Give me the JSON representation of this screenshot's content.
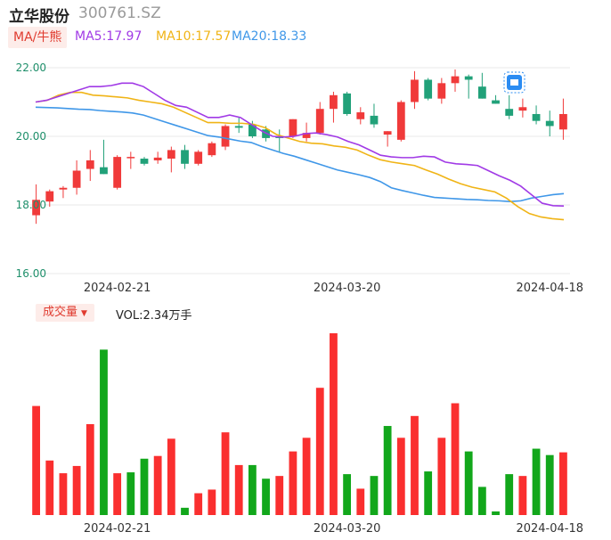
{
  "stock": {
    "name": "立华股份",
    "code": "300761.SZ"
  },
  "ma_tag": "MA/牛熊",
  "ma5": "MA5:17.97",
  "ma10": "MA10:17.57",
  "ma20": "MA20:18.33",
  "volume_panel": {
    "tag": "成交量",
    "value": "VOL:2.34万手"
  },
  "colors": {
    "up": "#f03a3a",
    "down": "#21a179",
    "vol_up": "#fa2f2f",
    "vol_down": "#12a71b",
    "ma5": "#a13ae6",
    "ma10": "#f0b416",
    "ma20": "#3f97e8",
    "axis_label": "#e03b2f"
  },
  "chart_data": [
    {
      "type": "candlestick",
      "y_ticks": [
        "22.00",
        "20.00",
        "18.00",
        "16.00"
      ],
      "ylim": [
        16.0,
        22.0
      ],
      "x_tick_labels": [
        "2024-02-21",
        "2024-03-20",
        "2024-04-18"
      ],
      "candles": [
        {
          "o": 17.7,
          "h": 18.6,
          "l": 17.45,
          "c": 18.15
        },
        {
          "o": 18.1,
          "h": 18.45,
          "l": 17.95,
          "c": 18.4
        },
        {
          "o": 18.45,
          "h": 18.55,
          "l": 18.2,
          "c": 18.5
        },
        {
          "o": 18.5,
          "h": 19.3,
          "l": 18.3,
          "c": 19.0
        },
        {
          "o": 19.05,
          "h": 19.6,
          "l": 18.7,
          "c": 19.3
        },
        {
          "o": 19.1,
          "h": 19.9,
          "l": 18.9,
          "c": 18.9
        },
        {
          "o": 18.5,
          "h": 19.45,
          "l": 18.45,
          "c": 19.4
        },
        {
          "o": 19.4,
          "h": 19.55,
          "l": 19.05,
          "c": 19.4
        },
        {
          "o": 19.35,
          "h": 19.4,
          "l": 19.15,
          "c": 19.2
        },
        {
          "o": 19.3,
          "h": 19.55,
          "l": 19.2,
          "c": 19.38
        },
        {
          "o": 19.35,
          "h": 19.7,
          "l": 18.95,
          "c": 19.6
        },
        {
          "o": 19.6,
          "h": 19.75,
          "l": 19.05,
          "c": 19.2
        },
        {
          "o": 19.2,
          "h": 19.6,
          "l": 19.15,
          "c": 19.55
        },
        {
          "o": 19.45,
          "h": 19.85,
          "l": 19.4,
          "c": 19.8
        },
        {
          "o": 19.7,
          "h": 20.35,
          "l": 19.6,
          "c": 20.3
        },
        {
          "o": 20.3,
          "h": 20.55,
          "l": 20.1,
          "c": 20.25
        },
        {
          "o": 20.35,
          "h": 20.45,
          "l": 19.95,
          "c": 20.0
        },
        {
          "o": 20.2,
          "h": 20.3,
          "l": 19.85,
          "c": 19.95
        },
        {
          "o": 20.0,
          "h": 20.2,
          "l": 19.55,
          "c": 19.95
        },
        {
          "o": 20.0,
          "h": 20.5,
          "l": 19.95,
          "c": 20.5
        },
        {
          "o": 19.95,
          "h": 20.4,
          "l": 19.85,
          "c": 20.1
        },
        {
          "o": 20.1,
          "h": 21.0,
          "l": 20.05,
          "c": 20.8
        },
        {
          "o": 20.8,
          "h": 21.3,
          "l": 20.4,
          "c": 21.2
        },
        {
          "o": 21.25,
          "h": 21.3,
          "l": 20.6,
          "c": 20.65
        },
        {
          "o": 20.5,
          "h": 20.85,
          "l": 20.35,
          "c": 20.7
        },
        {
          "o": 20.6,
          "h": 20.95,
          "l": 20.25,
          "c": 20.35
        },
        {
          "o": 20.05,
          "h": 20.15,
          "l": 19.7,
          "c": 20.15
        },
        {
          "o": 19.9,
          "h": 21.05,
          "l": 19.85,
          "c": 21.0
        },
        {
          "o": 21.0,
          "h": 21.9,
          "l": 20.8,
          "c": 21.65
        },
        {
          "o": 21.65,
          "h": 21.7,
          "l": 21.05,
          "c": 21.1
        },
        {
          "o": 21.1,
          "h": 21.7,
          "l": 20.95,
          "c": 21.55
        },
        {
          "o": 21.55,
          "h": 21.95,
          "l": 21.3,
          "c": 21.75
        },
        {
          "o": 21.75,
          "h": 21.8,
          "l": 21.1,
          "c": 21.65
        },
        {
          "o": 21.45,
          "h": 21.85,
          "l": 21.1,
          "c": 21.1
        },
        {
          "o": 21.05,
          "h": 21.2,
          "l": 20.95,
          "c": 20.95
        },
        {
          "o": 20.8,
          "h": 21.2,
          "l": 20.5,
          "c": 20.6
        },
        {
          "o": 20.75,
          "h": 21.1,
          "l": 20.55,
          "c": 20.85
        },
        {
          "o": 20.65,
          "h": 20.9,
          "l": 20.35,
          "c": 20.45
        },
        {
          "o": 20.45,
          "h": 20.75,
          "l": 20.0,
          "c": 20.3
        },
        {
          "o": 20.2,
          "h": 21.1,
          "l": 19.9,
          "c": 20.65
        }
      ],
      "ma5_line": [
        21.0,
        21.05,
        21.15,
        21.25,
        21.35,
        21.45,
        21.45,
        21.48,
        21.55,
        21.55,
        21.45,
        21.25,
        21.05,
        20.9,
        20.85,
        20.7,
        20.55,
        20.55,
        20.62,
        20.55,
        20.35,
        20.15,
        20.0,
        19.98,
        20.0,
        20.08,
        20.1,
        20.05,
        19.98,
        19.85,
        19.75,
        19.6,
        19.45,
        19.4,
        19.38,
        19.38,
        19.42,
        19.4,
        19.25,
        19.2,
        19.18,
        19.15,
        19.0,
        18.85,
        18.72,
        18.55,
        18.3,
        18.05,
        17.98,
        17.97
      ],
      "ma10_line": [
        21.0,
        21.05,
        21.2,
        21.28,
        21.28,
        21.2,
        21.18,
        21.15,
        21.12,
        21.05,
        21.0,
        20.95,
        20.85,
        20.7,
        20.55,
        20.4,
        20.4,
        20.38,
        20.38,
        20.35,
        20.25,
        20.05,
        19.95,
        19.85,
        19.8,
        19.78,
        19.72,
        19.68,
        19.6,
        19.45,
        19.32,
        19.25,
        19.2,
        19.15,
        19.02,
        18.9,
        18.75,
        18.62,
        18.52,
        18.45,
        18.38,
        18.2,
        17.95,
        17.75,
        17.65,
        17.6,
        17.57
      ],
      "ma20_line": [
        20.85,
        20.84,
        20.83,
        20.81,
        20.79,
        20.78,
        20.75,
        20.73,
        20.71,
        20.68,
        20.62,
        20.52,
        20.42,
        20.32,
        20.22,
        20.12,
        20.02,
        19.98,
        19.92,
        19.86,
        19.82,
        19.7,
        19.6,
        19.5,
        19.42,
        19.32,
        19.22,
        19.12,
        19.02,
        18.95,
        18.88,
        18.8,
        18.68,
        18.5,
        18.42,
        18.35,
        18.28,
        18.22,
        18.2,
        18.18,
        18.16,
        18.15,
        18.13,
        18.12,
        18.1,
        18.12,
        18.2,
        18.25,
        18.3,
        18.33
      ]
    },
    {
      "type": "bar",
      "title": "成交量",
      "x_tick_labels": [
        "2024-02-21",
        "2024-03-20",
        "2024-04-18"
      ],
      "values": [
        120,
        60,
        46,
        54,
        100,
        182,
        46,
        47,
        62,
        65,
        84,
        8,
        24,
        28,
        91,
        55,
        55,
        40,
        43,
        70,
        85,
        140,
        200,
        45,
        29,
        43,
        98,
        85,
        109,
        48,
        85,
        123,
        70,
        31,
        4,
        45,
        43,
        73,
        66,
        69
      ],
      "directions": [
        "u",
        "u",
        "u",
        "u",
        "u",
        "d",
        "u",
        "d",
        "d",
        "u",
        "u",
        "d",
        "u",
        "u",
        "u",
        "u",
        "d",
        "d",
        "u",
        "u",
        "u",
        "u",
        "u",
        "d",
        "u",
        "d",
        "d",
        "u",
        "u",
        "d",
        "u",
        "u",
        "d",
        "d",
        "d",
        "d",
        "u",
        "d",
        "d",
        "u"
      ]
    }
  ]
}
